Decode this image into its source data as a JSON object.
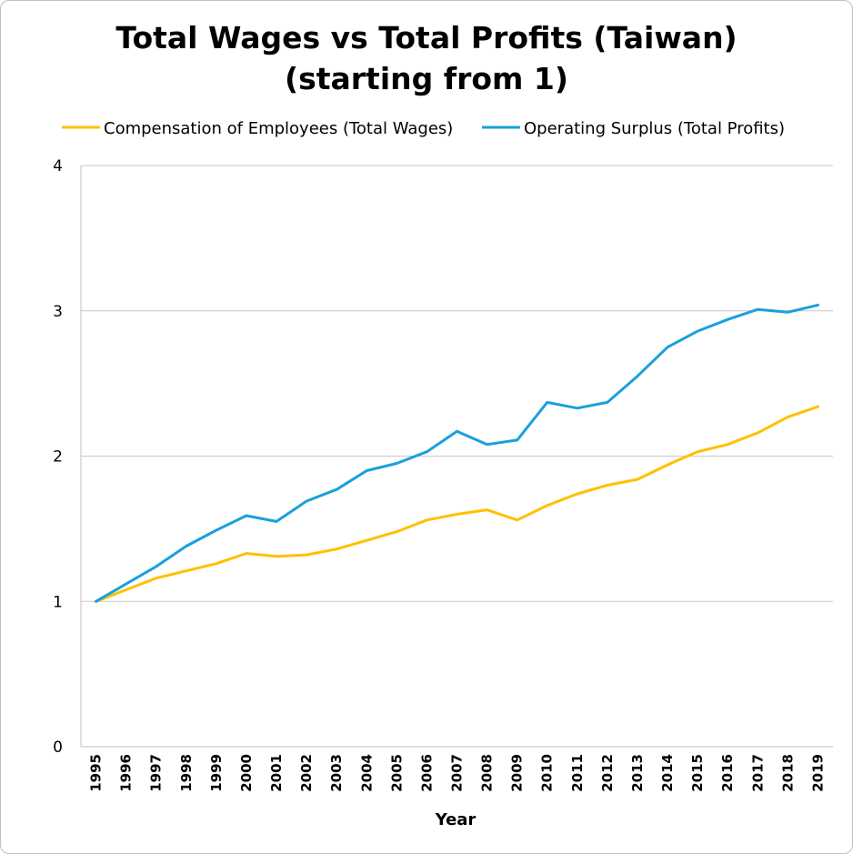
{
  "chart_data": {
    "type": "line",
    "title_line1": "Total Wages vs Total Profits (Taiwan)",
    "title_line2": "(starting from 1)",
    "xlabel": "Year",
    "ylabel": "",
    "ylim": [
      0,
      4
    ],
    "yticks": [
      "0",
      "1",
      "2",
      "3",
      "4"
    ],
    "grid": true,
    "legend_position": "top",
    "categories": [
      "1995",
      "1996",
      "1997",
      "1998",
      "1999",
      "2000",
      "2001",
      "2002",
      "2003",
      "2004",
      "2005",
      "2006",
      "2007",
      "2008",
      "2009",
      "2010",
      "2011",
      "2012",
      "2013",
      "2014",
      "2015",
      "2016",
      "2017",
      "2018",
      "2019"
    ],
    "series": [
      {
        "name": "Compensation of Employees (Total Wages)",
        "color": "#FFC000",
        "values": [
          1.0,
          1.08,
          1.16,
          1.21,
          1.26,
          1.33,
          1.31,
          1.32,
          1.36,
          1.42,
          1.48,
          1.56,
          1.6,
          1.63,
          1.56,
          1.66,
          1.74,
          1.8,
          1.84,
          1.94,
          2.03,
          2.08,
          2.16,
          2.27,
          2.34
        ]
      },
      {
        "name": "Operating Surplus (Total Profits)",
        "color": "#1AA0DC",
        "values": [
          1.0,
          1.12,
          1.24,
          1.38,
          1.49,
          1.59,
          1.55,
          1.69,
          1.77,
          1.9,
          1.95,
          2.03,
          2.17,
          2.08,
          2.11,
          2.37,
          2.33,
          2.37,
          2.55,
          2.75,
          2.86,
          2.94,
          3.01,
          2.99,
          3.04
        ]
      }
    ]
  }
}
